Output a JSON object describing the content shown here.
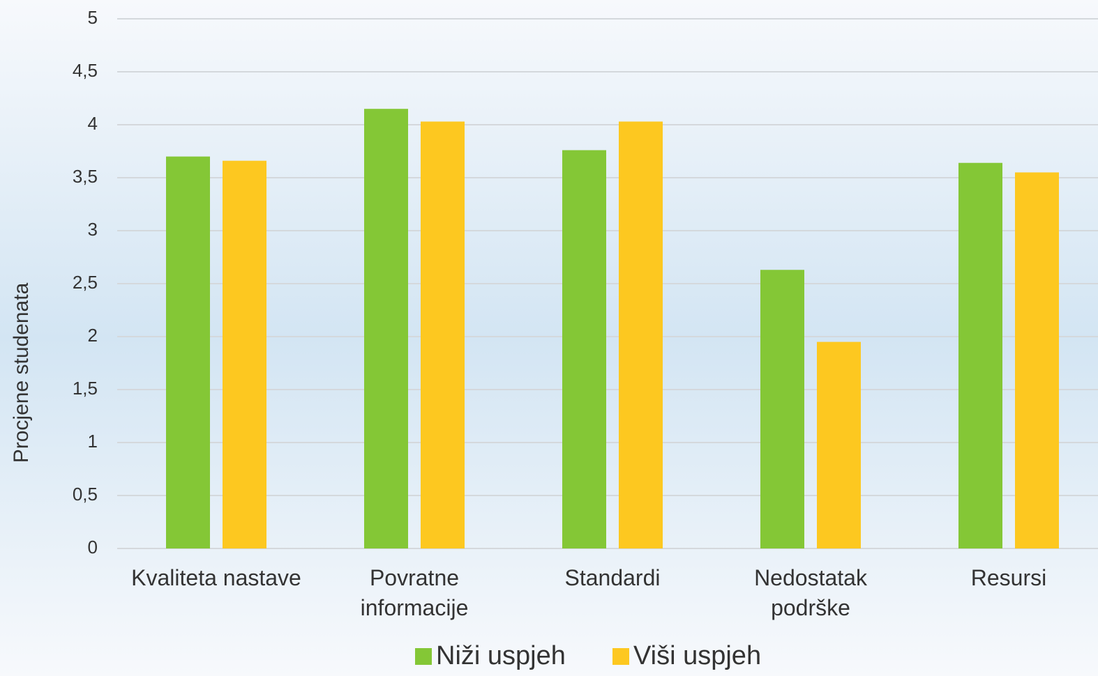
{
  "chart_data": {
    "type": "bar",
    "y_axis_label": "Procjene studenata",
    "categories": [
      "Kvaliteta nastave",
      "Povratne\ninformacije",
      "Standardi",
      "Nedostatak\npodrške",
      "Resursi"
    ],
    "series": [
      {
        "name": "Niži uspjeh",
        "color": "#84c736",
        "values": [
          3.7,
          4.15,
          3.76,
          2.63,
          3.64
        ]
      },
      {
        "name": "Viši uspjeh",
        "color": "#fdc820",
        "values": [
          3.66,
          4.03,
          4.03,
          1.95,
          3.55
        ]
      }
    ],
    "ylim": [
      0,
      5
    ],
    "yticks": [
      0,
      {
        "value": 0.5,
        "label": "0,5"
      },
      1,
      {
        "value": 1.5,
        "label": "1,5"
      },
      2,
      {
        "value": 2.5,
        "label": "2,5"
      },
      3,
      {
        "value": 3.5,
        "label": "3,5"
      },
      4,
      {
        "value": 4.5,
        "label": "4,5"
      },
      5
    ],
    "grid": true,
    "legend": "bottom"
  }
}
